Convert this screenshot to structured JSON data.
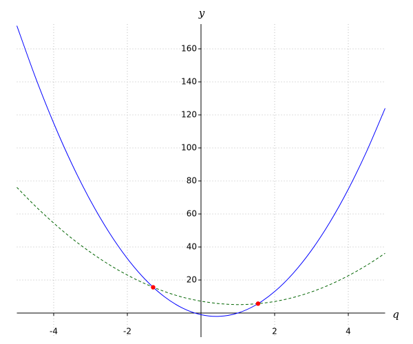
{
  "chart_data": {
    "type": "line",
    "x_label": "q",
    "y_label": "y",
    "x": [
      -5,
      -4.5,
      -4,
      -3.5,
      -3,
      -2.5,
      -2,
      -1.5,
      -1,
      -0.5,
      0,
      0.5,
      1,
      1.5,
      2,
      2.5,
      3,
      3.5,
      4,
      4.5,
      5
    ],
    "series": [
      {
        "color": "#0000ff",
        "dashed": false,
        "values": [
          174,
          143,
          115,
          90,
          68,
          49,
          33,
          20,
          10,
          3,
          -1,
          -2,
          0,
          5,
          13,
          24,
          38,
          55,
          75,
          98,
          124
        ]
      },
      {
        "color": "#006400",
        "dashed": true,
        "values": [
          76.1,
          64.8,
          54.5,
          45.1,
          36.8,
          29.4,
          23.0,
          17.6,
          13.1,
          9.6,
          7.2,
          5.7,
          5.1,
          5.6,
          7.0,
          9.4,
          12.8,
          17.2,
          22.6,
          28.9,
          36.2
        ]
      }
    ],
    "points": {
      "color": "#ff0000",
      "x": [
        -1.3,
        1.55
      ],
      "y": [
        15.6,
        5.7
      ]
    },
    "xlim": [
      -5,
      5
    ],
    "ylim": [
      -5,
      175
    ],
    "xticks": [
      -4,
      -2,
      2,
      4
    ],
    "yticks": [
      20,
      40,
      60,
      80,
      100,
      120,
      140,
      160
    ],
    "grid": true
  }
}
